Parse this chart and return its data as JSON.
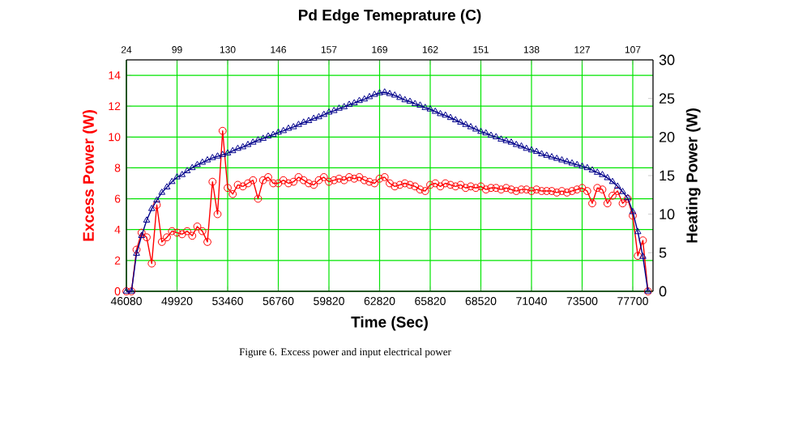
{
  "chart_data": {
    "type": "line",
    "x2label": "Pd Edge Temeprature (C)",
    "xlabel": "Time (Sec)",
    "ylabel": "Excess Power (W)",
    "y2label": "Heating Power (W)",
    "annotations": [
      "Figure 6.    Excess power and input electrical power",
      "24",
      "99",
      "130",
      "146",
      "157",
      "169",
      "162",
      "151",
      "138",
      "127",
      "107"
    ],
    "categories": [
      "46080",
      null,
      null,
      null,
      null,
      null,
      null,
      null,
      null,
      null,
      "49920",
      null,
      null,
      null,
      null,
      null,
      null,
      null,
      null,
      null,
      "53460",
      null,
      null,
      null,
      null,
      null,
      null,
      null,
      null,
      null,
      "56760",
      null,
      null,
      null,
      null,
      null,
      null,
      null,
      null,
      null,
      "59820",
      null,
      null,
      null,
      null,
      null,
      null,
      null,
      null,
      null,
      "62820",
      null,
      null,
      null,
      null,
      null,
      null,
      null,
      null,
      null,
      "65820",
      null,
      null,
      null,
      null,
      null,
      null,
      null,
      null,
      null,
      "68520",
      null,
      null,
      null,
      null,
      null,
      null,
      null,
      null,
      null,
      "71040",
      null,
      null,
      null,
      null,
      null,
      null,
      null,
      null,
      null,
      "73500",
      null,
      null,
      null,
      null,
      null,
      null,
      null,
      null,
      null,
      "77700",
      null,
      null,
      null
    ],
    "ylim": [
      0,
      15
    ],
    "yticks": [
      0,
      2,
      4,
      6,
      8,
      10,
      12,
      14
    ],
    "y2lim": [
      0,
      30
    ],
    "y2ticks": [
      0,
      5,
      10,
      15,
      20,
      25,
      30
    ],
    "grid": true,
    "line_style": "solid",
    "series": [
      {
        "color": "#ff0000",
        "marker": "circle",
        "values": [
          0,
          0,
          2.7,
          3.8,
          3.5,
          1.8,
          5.6,
          3.2,
          3.5,
          3.9,
          3.8,
          3.7,
          3.9,
          3.6,
          4.2,
          3.9,
          3.2,
          7.1,
          5.0,
          10.4,
          6.7,
          6.3,
          6.9,
          6.8,
          7.0,
          7.2,
          6.0,
          7.2,
          7.4,
          7.0,
          7.0,
          7.2,
          7.0,
          7.1,
          7.4,
          7.2,
          7.0,
          6.9,
          7.2,
          7.4,
          7.1,
          7.2,
          7.3,
          7.2,
          7.4,
          7.3,
          7.4,
          7.2,
          7.1,
          7.0,
          7.3,
          7.4,
          7.0,
          6.8,
          6.9,
          7.0,
          6.9,
          6.8,
          6.6,
          6.5,
          6.9,
          7.0,
          6.8,
          7.0,
          6.9,
          6.8,
          6.9,
          6.7,
          6.8,
          6.7,
          6.8,
          6.6,
          6.7,
          6.7,
          6.6,
          6.7,
          6.6,
          6.5,
          6.6,
          6.6,
          6.5,
          6.6,
          6.5,
          6.5,
          6.5,
          6.4,
          6.5,
          6.4,
          6.5,
          6.6,
          6.7,
          6.5,
          5.7,
          6.7,
          6.6,
          5.7,
          6.2,
          6.5,
          5.7,
          6.0,
          4.9,
          2.3,
          3.3,
          0
        ]
      },
      {
        "axis": "y2",
        "color": "#00008b",
        "marker": "triangle",
        "values": [
          0,
          0,
          4.9,
          7.2,
          9.2,
          10.7,
          11.8,
          12.8,
          13.5,
          14.2,
          14.8,
          15.1,
          15.6,
          16.0,
          16.4,
          16.7,
          17.0,
          17.3,
          17.5,
          17.7,
          17.9,
          18.2,
          18.5,
          18.7,
          19.0,
          19.3,
          19.6,
          19.8,
          20.1,
          20.3,
          20.6,
          20.8,
          21.1,
          21.3,
          21.6,
          21.9,
          22.1,
          22.4,
          22.6,
          22.9,
          23.2,
          23.4,
          23.7,
          23.9,
          24.2,
          24.4,
          24.7,
          24.9,
          25.2,
          25.5,
          25.7,
          25.8,
          25.6,
          25.4,
          25.1,
          24.8,
          24.6,
          24.3,
          24.1,
          23.8,
          23.6,
          23.3,
          23.0,
          22.8,
          22.5,
          22.2,
          21.9,
          21.6,
          21.3,
          21.0,
          20.7,
          20.5,
          20.2,
          20.0,
          19.7,
          19.5,
          19.3,
          19.0,
          18.8,
          18.5,
          18.3,
          18.1,
          17.8,
          17.6,
          17.4,
          17.2,
          17.0,
          16.8,
          16.6,
          16.4,
          16.2,
          16.0,
          15.7,
          15.4,
          15.1,
          14.7,
          14.2,
          13.6,
          12.9,
          12.1,
          10.3,
          7.7,
          4.5,
          0
        ]
      }
    ]
  }
}
